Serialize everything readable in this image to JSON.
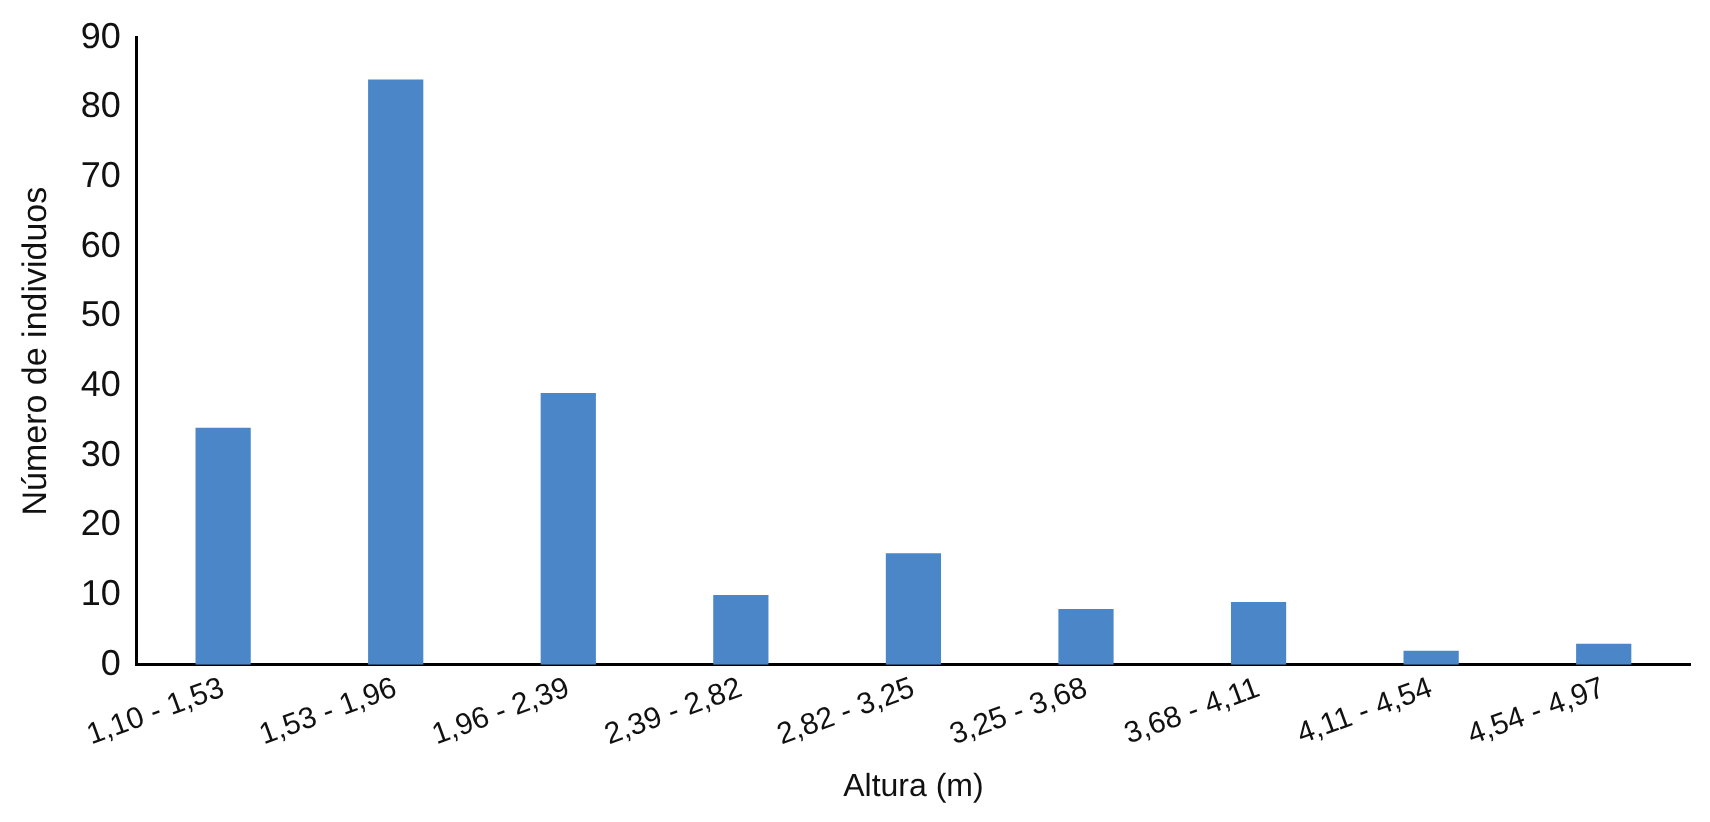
{
  "chart_data": {
    "type": "bar",
    "xlabel": "Altura (m)",
    "ylabel": "Número de individuos",
    "categories": [
      "1,10 - 1,53",
      "1,53 - 1,96",
      "1,96 - 2,39",
      "2,39 - 2,82",
      "2,82 - 3,25",
      "3,25 - 3,68",
      "3,68 - 4,11",
      "4,11 - 4,54",
      "4,54 - 4,97"
    ],
    "values": [
      34,
      84,
      39,
      10,
      16,
      8,
      9,
      2,
      3
    ],
    "color": "#4a86c8",
    "ylim": [
      0,
      90
    ],
    "yticks": [
      0,
      10,
      20,
      30,
      40,
      50,
      60,
      70,
      80,
      90
    ],
    "grid": false,
    "legend": false
  }
}
